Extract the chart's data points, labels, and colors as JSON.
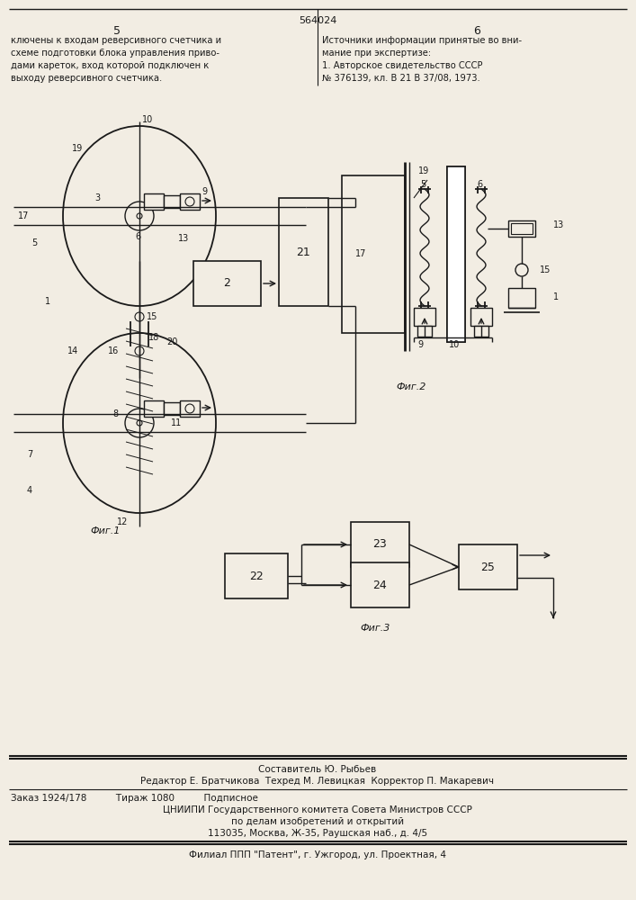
{
  "patent_number": "564024",
  "page_left": "5",
  "page_right": "6",
  "text_left_col": [
    "ключены к входам реверсивного счетчика и",
    "схеме подготовки блока управления приво-",
    "дами кареток, вход которой подключен к",
    "выходу реверсивного счетчика."
  ],
  "text_right_col": [
    "Источники информации принятые во вни-",
    "мание при экспертизе:",
    "1. Авторское свидетельство СССР",
    "№ 376139, кл. В 21 В 37/08, 1973."
  ],
  "fig1_caption": "Фиг.1",
  "fig2_caption": "Фиг.2",
  "fig3_caption": "Фиг.3",
  "bottom_text": [
    "Составитель Ю. Рыбьев",
    "Редактор Е. Братчикова  Техред М. Левицкая  Корректор П. Макаревич",
    "Заказ 1924/178          Тираж 1080          Подписное",
    "ЦНИИПИ Государственного комитета Совета Министров СССР",
    "по делам изобретений и открытий",
    "113035, Москва, Ж-35, Раушская наб., д. 4/5",
    "Филиал ППП \"Патент\", г. Ужгород, ул. Проектная, 4"
  ],
  "bg_color": "#f2ede3",
  "line_color": "#1a1a1a"
}
